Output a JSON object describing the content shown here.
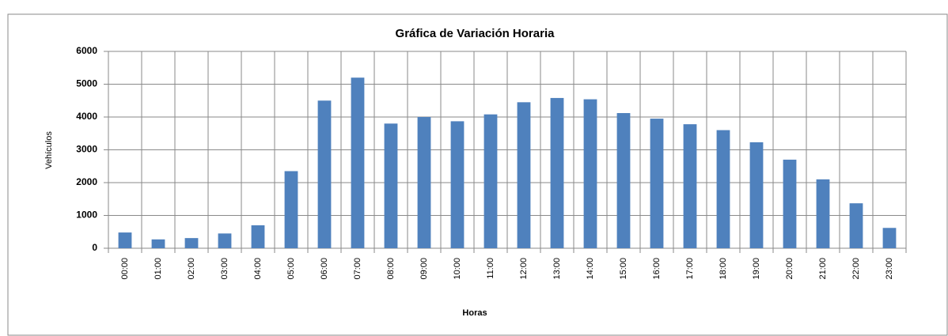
{
  "chart_data": {
    "type": "bar",
    "title": "Gráfica de Variación Horaria",
    "x_label": "Horas",
    "y_label": "Vehículos",
    "categories": [
      "00:00",
      "01:00",
      "02:00",
      "03:00",
      "04:00",
      "05:00",
      "06:00",
      "07:00",
      "08:00",
      "09:00",
      "10:00",
      "11:00",
      "12:00",
      "13:00",
      "14:00",
      "15:00",
      "16:00",
      "17:00",
      "18:00",
      "19:00",
      "20:00",
      "21:00",
      "22:00",
      "23:00"
    ],
    "values": [
      480,
      270,
      310,
      450,
      700,
      2350,
      4500,
      5200,
      3800,
      4000,
      3870,
      4080,
      4450,
      4580,
      4540,
      4120,
      3950,
      3780,
      3600,
      3230,
      2700,
      2100,
      1370,
      620
    ],
    "color": "#4f81bd",
    "ylim": [
      0,
      6000
    ],
    "yticks": [
      0,
      1000,
      2000,
      3000,
      4000,
      5000,
      6000
    ],
    "grid": true
  }
}
